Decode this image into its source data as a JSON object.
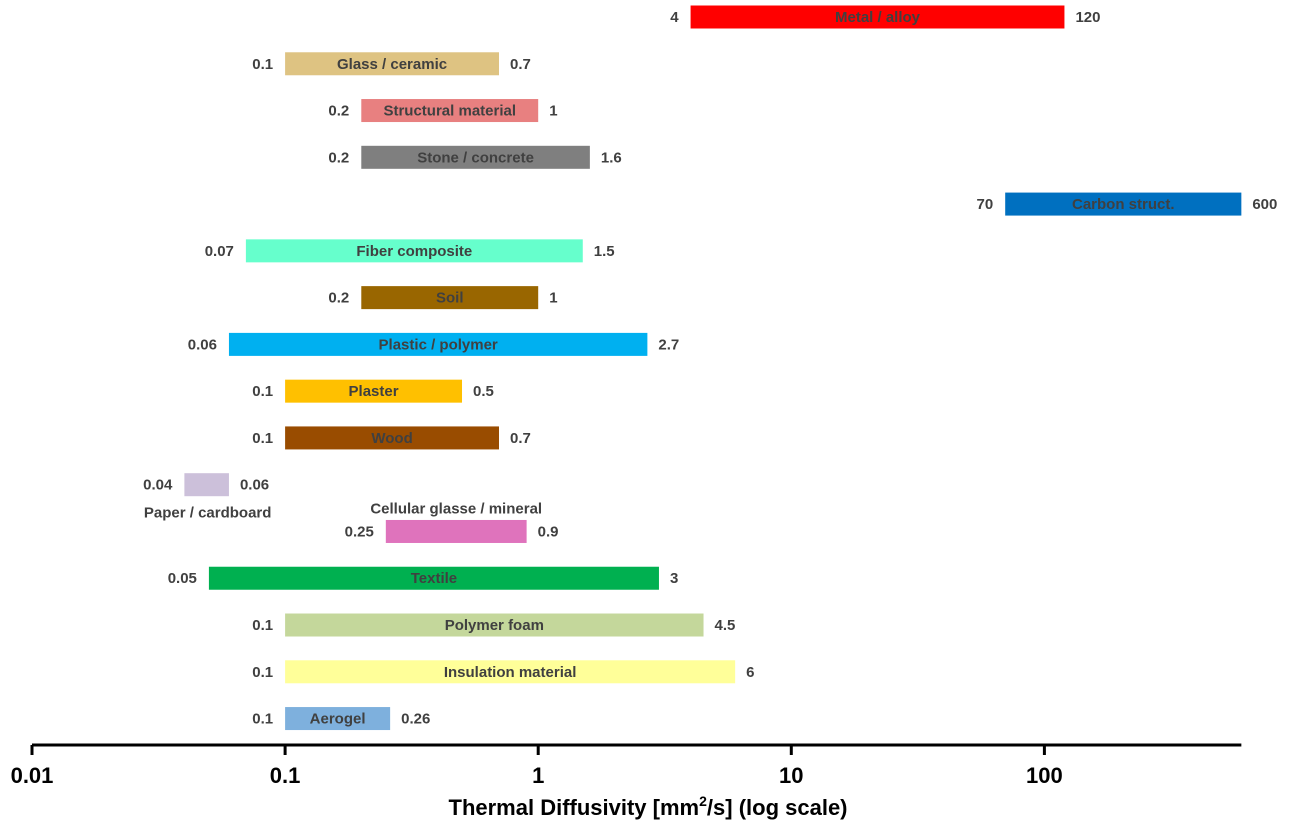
{
  "chart_data": {
    "type": "bar",
    "orientation": "horizontal-range",
    "x_scale": "log",
    "xlim": [
      0.01,
      600
    ],
    "xlabel": {
      "main": "Thermal Diffusivity [mm",
      "sup": "2",
      "suffix": "/s] (log scale)"
    },
    "x_ticks": [
      {
        "value": 0.01,
        "label": "0.01"
      },
      {
        "value": 0.1,
        "label": "0.1"
      },
      {
        "value": 1,
        "label": "1"
      },
      {
        "value": 10,
        "label": "10"
      },
      {
        "value": 100,
        "label": "100"
      }
    ],
    "grid": false,
    "bars": [
      {
        "label": "Metal / alloy",
        "min": 4,
        "max": 120,
        "min_label": "4",
        "max_label": "120",
        "color": "#FF0000",
        "label_pos": "inside"
      },
      {
        "label": "Glass / ceramic",
        "min": 0.1,
        "max": 0.7,
        "min_label": "0.1",
        "max_label": "0.7",
        "color": "#DEC382",
        "label_pos": "inside"
      },
      {
        "label": "Structural material",
        "min": 0.2,
        "max": 1,
        "min_label": "0.2",
        "max_label": "1",
        "color": "#E88080",
        "label_pos": "inside"
      },
      {
        "label": "Stone / concrete",
        "min": 0.2,
        "max": 1.6,
        "min_label": "0.2",
        "max_label": "1.6",
        "color": "#7F7F7F",
        "label_pos": "inside"
      },
      {
        "label": "Carbon struct.",
        "min": 70,
        "max": 600,
        "min_label": "70",
        "max_label": "600",
        "color": "#0070C0",
        "label_pos": "inside"
      },
      {
        "label": "Fiber composite",
        "min": 0.07,
        "max": 1.5,
        "min_label": "0.07",
        "max_label": "1.5",
        "color": "#66FFCC",
        "label_pos": "inside"
      },
      {
        "label": "Soil",
        "min": 0.2,
        "max": 1,
        "min_label": "0.2",
        "max_label": "1",
        "color": "#996600",
        "label_pos": "inside"
      },
      {
        "label": "Plastic / polymer",
        "min": 0.06,
        "max": 2.7,
        "min_label": "0.06",
        "max_label": "2.7",
        "color": "#00B0F0",
        "label_pos": "inside"
      },
      {
        "label": "Plaster",
        "min": 0.1,
        "max": 0.5,
        "min_label": "0.1",
        "max_label": "0.5",
        "color": "#FFC000",
        "label_pos": "inside"
      },
      {
        "label": "Wood",
        "min": 0.1,
        "max": 0.7,
        "min_label": "0.1",
        "max_label": "0.7",
        "color": "#994C00",
        "label_pos": "inside"
      },
      {
        "label": "Paper / cardboard",
        "min": 0.04,
        "max": 0.06,
        "min_label": "0.04",
        "max_label": "0.06",
        "color": "#CCC0DA",
        "label_pos": "below"
      },
      {
        "label": "Cellular glasse / mineral",
        "min": 0.25,
        "max": 0.9,
        "min_label": "0.25",
        "max_label": "0.9",
        "color": "#DF73BC",
        "label_pos": "above"
      },
      {
        "label": "Textile",
        "min": 0.05,
        "max": 3,
        "min_label": "0.05",
        "max_label": "3",
        "color": "#00B050",
        "label_pos": "inside"
      },
      {
        "label": "Polymer foam",
        "min": 0.1,
        "max": 4.5,
        "min_label": "0.1",
        "max_label": "4.5",
        "color": "#C4D79B",
        "label_pos": "inside"
      },
      {
        "label": "Insulation material",
        "min": 0.1,
        "max": 6,
        "min_label": "0.1",
        "max_label": "6",
        "color": "#FFFF99",
        "label_pos": "inside"
      },
      {
        "label": "Aerogel",
        "min": 0.1,
        "max": 0.26,
        "min_label": "0.1",
        "max_label": "0.26",
        "color": "#7EB0DD",
        "label_pos": "inside"
      }
    ]
  }
}
